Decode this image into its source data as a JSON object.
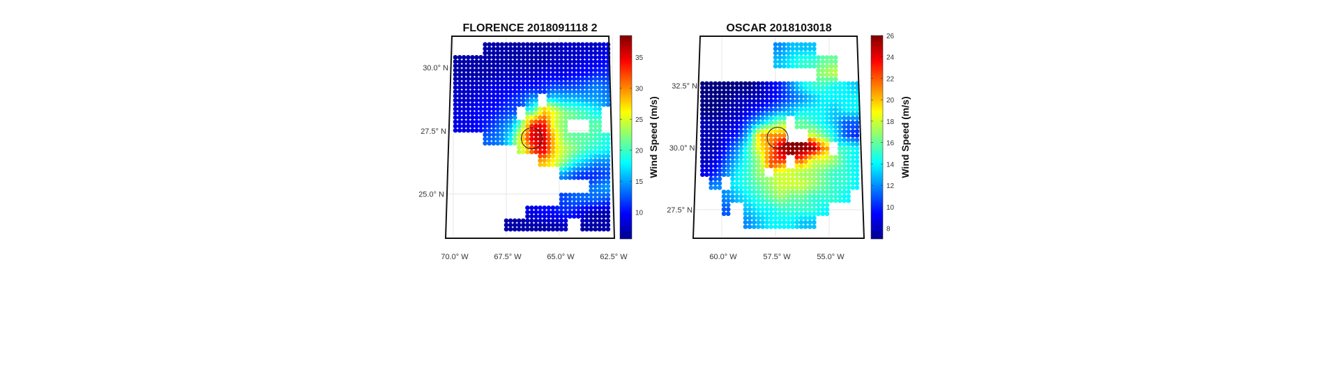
{
  "chart_data": [
    {
      "type": "heatmap",
      "title": "FLORENCE 2018091118 2",
      "colorbar_label": "Wind Speed (m/s)",
      "colormap": "jet",
      "clim": [
        5.7,
        38.5
      ],
      "colorbar_ticks": [
        "10",
        "15",
        "20",
        "25",
        "30",
        "35"
      ],
      "lat_tick_labels": [
        "30.0° N",
        "27.5° N",
        "25.0° N"
      ],
      "lat_ticks": [
        30.0,
        27.5,
        25.0
      ],
      "lon_tick_labels": [
        "70.0° W",
        "67.5° W",
        "65.0° W",
        "62.5° W"
      ],
      "lon_ticks": [
        -70.0,
        -67.5,
        -65.0,
        -62.5
      ],
      "center_marker": {
        "lat": 27.2,
        "lon": -66.3
      },
      "lon": [
        -69.75,
        -69.25,
        -68.75,
        -68.25,
        -67.75,
        -67.25,
        -66.75,
        -66.25,
        -65.75,
        -65.25,
        -64.75,
        -64.25,
        -63.75,
        -63.25,
        -62.75
      ],
      "lat": [
        30.75,
        30.25,
        29.75,
        29.25,
        28.75,
        28.25,
        27.75,
        27.25,
        26.75,
        26.25,
        25.75,
        25.25,
        24.75,
        24.25,
        23.75
      ],
      "z": [
        [
          null,
          null,
          null,
          7,
          7,
          7,
          7,
          7,
          7,
          7,
          8,
          8,
          8,
          8,
          9
        ],
        [
          7,
          7,
          7,
          7,
          7,
          7,
          7,
          7,
          7,
          8,
          8,
          8,
          9,
          9,
          10
        ],
        [
          7,
          7,
          7,
          7,
          8,
          8,
          8,
          8,
          9,
          9,
          9,
          10,
          10,
          11,
          11
        ],
        [
          8,
          8,
          8,
          9,
          9,
          9,
          10,
          10,
          11,
          12,
          12,
          12,
          13,
          14,
          13
        ],
        [
          8,
          8,
          9,
          9,
          10,
          11,
          12,
          15,
          null,
          17,
          16,
          16,
          15,
          15,
          14
        ],
        [
          9,
          9,
          10,
          10,
          11,
          12,
          null,
          20,
          28,
          26,
          22,
          21,
          20,
          18,
          null
        ],
        [
          9,
          9,
          10,
          11,
          13,
          15,
          22,
          34,
          35,
          25,
          22,
          null,
          null,
          21,
          null
        ],
        [
          null,
          null,
          null,
          13,
          14,
          18,
          28,
          36,
          36,
          28,
          22,
          21,
          21,
          20,
          19
        ],
        [
          null,
          null,
          null,
          null,
          null,
          null,
          24,
          32,
          36,
          28,
          24,
          22,
          20,
          19,
          18
        ],
        [
          null,
          null,
          null,
          null,
          null,
          null,
          null,
          null,
          28,
          26,
          22,
          18,
          16,
          14,
          14
        ],
        [
          null,
          null,
          null,
          null,
          null,
          null,
          null,
          null,
          null,
          null,
          14,
          12,
          11,
          11,
          12
        ],
        [
          null,
          null,
          null,
          null,
          null,
          null,
          null,
          null,
          null,
          null,
          null,
          null,
          null,
          14,
          15
        ],
        [
          null,
          null,
          null,
          null,
          null,
          null,
          null,
          null,
          null,
          null,
          12,
          13,
          13,
          13,
          12
        ],
        [
          null,
          null,
          null,
          null,
          null,
          null,
          null,
          9,
          10,
          10,
          11,
          10,
          8,
          7,
          7
        ],
        [
          null,
          null,
          null,
          null,
          null,
          7,
          7,
          7,
          7,
          7,
          8,
          null,
          7,
          7,
          7
        ]
      ]
    },
    {
      "type": "heatmap",
      "title": "OSCAR 2018103018",
      "colorbar_label": "Wind Speed (m/s)",
      "colormap": "jet",
      "clim": [
        7.0,
        26.0
      ],
      "colorbar_ticks": [
        "8",
        "10",
        "12",
        "14",
        "16",
        "18",
        "20",
        "22",
        "24",
        "26"
      ],
      "lat_tick_labels": [
        "32.5° N",
        "30.0° N",
        "27.5° N"
      ],
      "lat_ticks": [
        32.5,
        30.0,
        27.5
      ],
      "lon_tick_labels": [
        "60.0° W",
        "57.5° W",
        "55.0° W"
      ],
      "lon_ticks": [
        -60.0,
        -57.5,
        -55.0
      ],
      "center_marker": {
        "lat": 30.4,
        "lon": -57.4
      },
      "lon": [
        -60.75,
        -60.25,
        -59.75,
        -59.25,
        -58.75,
        -58.25,
        -57.75,
        -57.25,
        -56.75,
        -56.25,
        -55.75,
        -55.25,
        -54.75,
        -54.25,
        -53.75
      ],
      "lat": [
        34.0,
        33.5,
        33.0,
        32.5,
        32.0,
        31.5,
        31.0,
        30.5,
        30.0,
        29.5,
        29.0,
        28.5,
        28.0,
        27.5,
        27.0
      ],
      "z": [
        [
          null,
          null,
          null,
          null,
          null,
          null,
          null,
          12,
          13,
          13,
          13,
          null,
          null,
          null,
          null
        ],
        [
          null,
          null,
          null,
          null,
          null,
          null,
          null,
          13,
          14,
          15,
          15,
          16,
          16,
          null,
          null
        ],
        [
          null,
          null,
          null,
          null,
          null,
          null,
          null,
          null,
          null,
          null,
          null,
          17,
          18,
          null,
          null
        ],
        [
          7,
          7,
          7,
          7,
          7,
          8,
          9,
          10,
          12,
          14,
          15,
          15,
          14,
          14,
          13
        ],
        [
          7,
          7,
          7,
          8,
          8,
          8,
          9,
          10,
          11,
          12,
          13,
          14,
          14,
          14,
          14
        ],
        [
          7,
          7,
          8,
          8,
          9,
          10,
          11,
          12,
          13,
          14,
          14,
          14,
          13,
          14,
          14
        ],
        [
          8,
          8,
          8,
          9,
          11,
          13,
          15,
          17,
          null,
          16,
          15,
          14,
          13,
          11,
          11
        ],
        [
          8,
          8,
          9,
          10,
          13,
          20,
          21,
          21,
          null,
          null,
          18,
          16,
          14,
          11,
          10
        ],
        [
          8,
          8,
          10,
          12,
          15,
          19,
          21,
          25,
          26,
          26,
          26,
          21,
          null,
          15,
          14
        ],
        [
          8,
          9,
          11,
          13,
          15,
          17,
          22,
          23,
          null,
          22,
          18,
          18,
          17,
          15,
          14
        ],
        [
          9,
          10,
          12,
          14,
          15,
          17,
          null,
          18,
          18,
          17,
          17,
          16,
          15,
          15,
          14
        ],
        [
          null,
          12,
          null,
          14,
          15,
          16,
          17,
          18,
          18,
          18,
          17,
          16,
          15,
          15,
          14
        ],
        [
          null,
          null,
          12,
          13,
          14,
          15,
          16,
          17,
          16,
          16,
          15,
          15,
          15,
          14,
          null
        ],
        [
          null,
          null,
          11,
          null,
          13,
          14,
          14,
          15,
          15,
          15,
          15,
          14,
          null,
          null,
          null
        ],
        [
          null,
          null,
          null,
          null,
          12,
          13,
          14,
          14,
          14,
          13,
          13,
          null,
          null,
          null,
          null
        ]
      ]
    }
  ]
}
